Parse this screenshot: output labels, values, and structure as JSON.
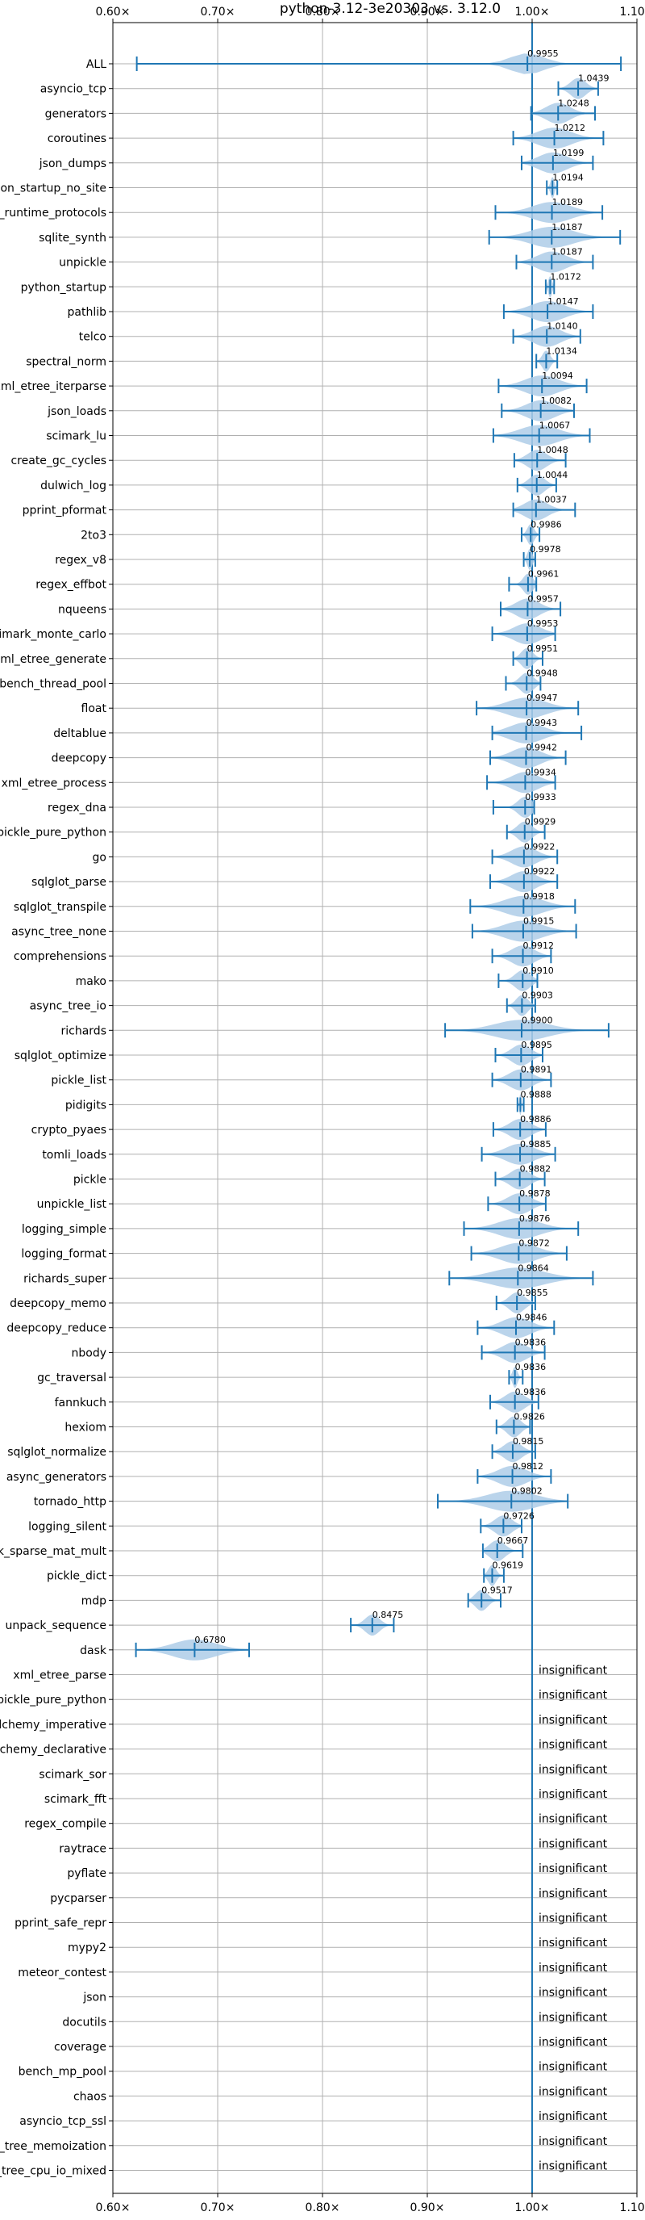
{
  "chart_data": {
    "type": "violin",
    "title": "python-3.12-3e20303 vs. 3.12.0",
    "xlabel": "",
    "ylabel": "",
    "xlim": [
      0.6,
      1.1
    ],
    "xticks": [
      "0.60×",
      "0.70×",
      "0.80×",
      "0.90×",
      "1.00×",
      "1.10×"
    ],
    "xtick_values": [
      0.6,
      0.7,
      0.8,
      0.9,
      1.0,
      1.1
    ],
    "reference_line": 1.0,
    "grid": true,
    "insignificant_text": "insignificant",
    "colors": {
      "accent": "#1f77b4",
      "violin_fill": "#aecde8",
      "grid": "#b0b0b0"
    },
    "benchmarks": [
      {
        "name": "ALL",
        "label": "0.9955",
        "center": 0.9955,
        "min": 0.6228,
        "max": 1.0847,
        "spread": 0.035
      },
      {
        "name": "asyncio_tcp",
        "label": "1.0439",
        "center": 1.0439,
        "min": 1.025,
        "max": 1.063,
        "spread": 0.016
      },
      {
        "name": "generators",
        "label": "1.0248",
        "center": 1.0248,
        "min": 0.999,
        "max": 1.06,
        "spread": 0.025
      },
      {
        "name": "coroutines",
        "label": "1.0212",
        "center": 1.0212,
        "min": 0.982,
        "max": 1.068,
        "spread": 0.035
      },
      {
        "name": "json_dumps",
        "label": "1.0199",
        "center": 1.0199,
        "min": 0.99,
        "max": 1.058,
        "spread": 0.03
      },
      {
        "name": "python_startup_no_site",
        "label": "1.0194",
        "center": 1.0194,
        "min": 1.014,
        "max": 1.024,
        "spread": 0.004
      },
      {
        "name": "typing_runtime_protocols",
        "label": "1.0189",
        "center": 1.0189,
        "min": 0.965,
        "max": 1.067,
        "spread": 0.04
      },
      {
        "name": "sqlite_synth",
        "label": "1.0187",
        "center": 1.0187,
        "min": 0.959,
        "max": 1.084,
        "spread": 0.045
      },
      {
        "name": "unpickle",
        "label": "1.0187",
        "center": 1.0187,
        "min": 0.985,
        "max": 1.058,
        "spread": 0.03
      },
      {
        "name": "python_startup",
        "label": "1.0172",
        "center": 1.0172,
        "min": 1.013,
        "max": 1.021,
        "spread": 0.004
      },
      {
        "name": "pathlib",
        "label": "1.0147",
        "center": 1.0147,
        "min": 0.973,
        "max": 1.058,
        "spread": 0.035
      },
      {
        "name": "telco",
        "label": "1.0140",
        "center": 1.014,
        "min": 0.982,
        "max": 1.046,
        "spread": 0.028
      },
      {
        "name": "spectral_norm",
        "label": "1.0134",
        "center": 1.0134,
        "min": 1.004,
        "max": 1.024,
        "spread": 0.008
      },
      {
        "name": "xml_etree_iterparse",
        "label": "1.0094",
        "center": 1.0094,
        "min": 0.968,
        "max": 1.052,
        "spread": 0.035
      },
      {
        "name": "json_loads",
        "label": "1.0082",
        "center": 1.0082,
        "min": 0.971,
        "max": 1.04,
        "spread": 0.03
      },
      {
        "name": "scimark_lu",
        "label": "1.0067",
        "center": 1.0067,
        "min": 0.963,
        "max": 1.055,
        "spread": 0.04
      },
      {
        "name": "create_gc_cycles",
        "label": "1.0048",
        "center": 1.0048,
        "min": 0.983,
        "max": 1.032,
        "spread": 0.02
      },
      {
        "name": "dulwich_log",
        "label": "1.0044",
        "center": 1.0044,
        "min": 0.986,
        "max": 1.023,
        "spread": 0.016
      },
      {
        "name": "pprint_pformat",
        "label": "1.0037",
        "center": 1.0037,
        "min": 0.982,
        "max": 1.041,
        "spread": 0.024
      },
      {
        "name": "2to3",
        "label": "0.9986",
        "center": 0.9986,
        "min": 0.99,
        "max": 1.007,
        "spread": 0.007
      },
      {
        "name": "regex_v8",
        "label": "0.9978",
        "center": 0.9978,
        "min": 0.992,
        "max": 1.003,
        "spread": 0.005
      },
      {
        "name": "regex_effbot",
        "label": "0.9961",
        "center": 0.9961,
        "min": 0.978,
        "max": 1.004,
        "spread": 0.01
      },
      {
        "name": "nqueens",
        "label": "0.9957",
        "center": 0.9957,
        "min": 0.97,
        "max": 1.027,
        "spread": 0.024
      },
      {
        "name": "scimark_monte_carlo",
        "label": "0.9953",
        "center": 0.9953,
        "min": 0.962,
        "max": 1.022,
        "spread": 0.028
      },
      {
        "name": "xml_etree_generate",
        "label": "0.9951",
        "center": 0.9951,
        "min": 0.982,
        "max": 1.01,
        "spread": 0.012
      },
      {
        "name": "bench_thread_pool",
        "label": "0.9948",
        "center": 0.9948,
        "min": 0.975,
        "max": 1.008,
        "spread": 0.014
      },
      {
        "name": "float",
        "label": "0.9947",
        "center": 0.9947,
        "min": 0.947,
        "max": 1.044,
        "spread": 0.04
      },
      {
        "name": "deltablue",
        "label": "0.9943",
        "center": 0.9943,
        "min": 0.962,
        "max": 1.047,
        "spread": 0.035
      },
      {
        "name": "deepcopy",
        "label": "0.9942",
        "center": 0.9942,
        "min": 0.96,
        "max": 1.032,
        "spread": 0.03
      },
      {
        "name": "xml_etree_process",
        "label": "0.9934",
        "center": 0.9934,
        "min": 0.957,
        "max": 1.022,
        "spread": 0.028
      },
      {
        "name": "regex_dna",
        "label": "0.9933",
        "center": 0.9933,
        "min": 0.963,
        "max": 1.002,
        "spread": 0.015
      },
      {
        "name": "pickle_pure_python",
        "label": "0.9929",
        "center": 0.9929,
        "min": 0.976,
        "max": 1.012,
        "spread": 0.015
      },
      {
        "name": "go",
        "label": "0.9922",
        "center": 0.9922,
        "min": 0.962,
        "max": 1.024,
        "spread": 0.026
      },
      {
        "name": "sqlglot_parse",
        "label": "0.9922",
        "center": 0.9922,
        "min": 0.96,
        "max": 1.024,
        "spread": 0.026
      },
      {
        "name": "sqlglot_transpile",
        "label": "0.9918",
        "center": 0.9918,
        "min": 0.941,
        "max": 1.041,
        "spread": 0.04
      },
      {
        "name": "async_tree_none",
        "label": "0.9915",
        "center": 0.9915,
        "min": 0.943,
        "max": 1.042,
        "spread": 0.04
      },
      {
        "name": "comprehensions",
        "label": "0.9912",
        "center": 0.9912,
        "min": 0.962,
        "max": 1.018,
        "spread": 0.024
      },
      {
        "name": "mako",
        "label": "0.9910",
        "center": 0.991,
        "min": 0.968,
        "max": 1.005,
        "spread": 0.016
      },
      {
        "name": "async_tree_io",
        "label": "0.9903",
        "center": 0.9903,
        "min": 0.976,
        "max": 1.003,
        "spread": 0.012
      },
      {
        "name": "richards",
        "label": "0.9900",
        "center": 0.99,
        "min": 0.917,
        "max": 1.073,
        "spread": 0.055
      },
      {
        "name": "sqlglot_optimize",
        "label": "0.9895",
        "center": 0.9895,
        "min": 0.965,
        "max": 1.01,
        "spread": 0.02
      },
      {
        "name": "pickle_list",
        "label": "0.9891",
        "center": 0.9891,
        "min": 0.962,
        "max": 1.018,
        "spread": 0.024
      },
      {
        "name": "pidigits",
        "label": "0.9888",
        "center": 0.9888,
        "min": 0.986,
        "max": 0.992,
        "spread": 0.002
      },
      {
        "name": "crypto_pyaes",
        "label": "0.9886",
        "center": 0.9886,
        "min": 0.963,
        "max": 1.013,
        "spread": 0.022
      },
      {
        "name": "tomli_loads",
        "label": "0.9885",
        "center": 0.9885,
        "min": 0.952,
        "max": 1.022,
        "spread": 0.03
      },
      {
        "name": "pickle",
        "label": "0.9882",
        "center": 0.9882,
        "min": 0.965,
        "max": 1.012,
        "spread": 0.02
      },
      {
        "name": "unpickle_list",
        "label": "0.9878",
        "center": 0.9878,
        "min": 0.958,
        "max": 1.013,
        "spread": 0.024
      },
      {
        "name": "logging_simple",
        "label": "0.9876",
        "center": 0.9876,
        "min": 0.935,
        "max": 1.044,
        "spread": 0.042
      },
      {
        "name": "logging_format",
        "label": "0.9872",
        "center": 0.9872,
        "min": 0.942,
        "max": 1.033,
        "spread": 0.038
      },
      {
        "name": "richards_super",
        "label": "0.9864",
        "center": 0.9864,
        "min": 0.921,
        "max": 1.058,
        "spread": 0.055
      },
      {
        "name": "deepcopy_memo",
        "label": "0.9855",
        "center": 0.9855,
        "min": 0.966,
        "max": 1.003,
        "spread": 0.016
      },
      {
        "name": "deepcopy_reduce",
        "label": "0.9846",
        "center": 0.9846,
        "min": 0.948,
        "max": 1.021,
        "spread": 0.03
      },
      {
        "name": "nbody",
        "label": "0.9836",
        "center": 0.9836,
        "min": 0.952,
        "max": 1.012,
        "spread": 0.025
      },
      {
        "name": "gc_traversal",
        "label": "0.9836",
        "center": 0.9836,
        "min": 0.978,
        "max": 0.991,
        "spread": 0.005
      },
      {
        "name": "fannkuch",
        "label": "0.9836",
        "center": 0.9836,
        "min": 0.96,
        "max": 1.006,
        "spread": 0.02
      },
      {
        "name": "hexiom",
        "label": "0.9826",
        "center": 0.9826,
        "min": 0.966,
        "max": 0.998,
        "spread": 0.014
      },
      {
        "name": "sqlglot_normalize",
        "label": "0.9815",
        "center": 0.9815,
        "min": 0.962,
        "max": 1.003,
        "spread": 0.018
      },
      {
        "name": "async_generators",
        "label": "0.9812",
        "center": 0.9812,
        "min": 0.948,
        "max": 1.018,
        "spread": 0.03
      },
      {
        "name": "tornado_http",
        "label": "0.9802",
        "center": 0.9802,
        "min": 0.91,
        "max": 1.034,
        "spread": 0.05
      },
      {
        "name": "logging_silent",
        "label": "0.9726",
        "center": 0.9726,
        "min": 0.951,
        "max": 0.99,
        "spread": 0.018
      },
      {
        "name": "scimark_sparse_mat_mult",
        "label": "0.9667",
        "center": 0.9667,
        "min": 0.953,
        "max": 0.991,
        "spread": 0.016
      },
      {
        "name": "pickle_dict",
        "label": "0.9619",
        "center": 0.9619,
        "min": 0.954,
        "max": 0.973,
        "spread": 0.008
      },
      {
        "name": "mdp",
        "label": "0.9517",
        "center": 0.9517,
        "min": 0.939,
        "max": 0.97,
        "spread": 0.013
      },
      {
        "name": "unpack_sequence",
        "label": "0.8475",
        "center": 0.8475,
        "min": 0.827,
        "max": 0.868,
        "spread": 0.015
      },
      {
        "name": "dask",
        "label": "0.6780",
        "center": 0.678,
        "min": 0.622,
        "max": 0.73,
        "spread": 0.045
      },
      {
        "name": "xml_etree_parse",
        "insignificant": true
      },
      {
        "name": "unpickle_pure_python",
        "insignificant": true
      },
      {
        "name": "sqlalchemy_imperative",
        "insignificant": true
      },
      {
        "name": "sqlalchemy_declarative",
        "insignificant": true
      },
      {
        "name": "scimark_sor",
        "insignificant": true
      },
      {
        "name": "scimark_fft",
        "insignificant": true
      },
      {
        "name": "regex_compile",
        "insignificant": true
      },
      {
        "name": "raytrace",
        "insignificant": true
      },
      {
        "name": "pyflate",
        "insignificant": true
      },
      {
        "name": "pycparser",
        "insignificant": true
      },
      {
        "name": "pprint_safe_repr",
        "insignificant": true
      },
      {
        "name": "mypy2",
        "insignificant": true
      },
      {
        "name": "meteor_contest",
        "insignificant": true
      },
      {
        "name": "json",
        "insignificant": true
      },
      {
        "name": "docutils",
        "insignificant": true
      },
      {
        "name": "coverage",
        "insignificant": true
      },
      {
        "name": "bench_mp_pool",
        "insignificant": true
      },
      {
        "name": "chaos",
        "insignificant": true
      },
      {
        "name": "asyncio_tcp_ssl",
        "insignificant": true
      },
      {
        "name": "async_tree_memoization",
        "insignificant": true
      },
      {
        "name": "async_tree_cpu_io_mixed",
        "insignificant": true
      }
    ]
  }
}
